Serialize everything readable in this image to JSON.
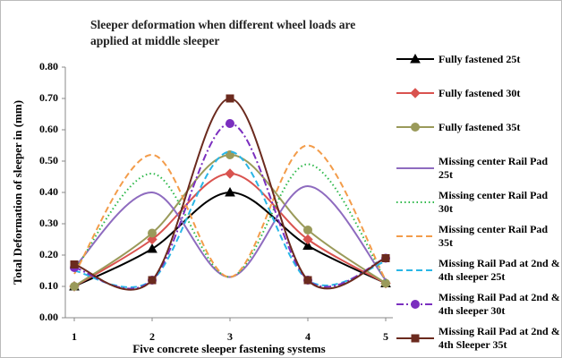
{
  "chart_data": {
    "type": "line",
    "title": "Sleeper deformation when different wheel loads are applied at middle sleeper",
    "x_label": "Five concrete sleeper fastening systems",
    "y_label": "Total Deformation of sleeper in (mm)",
    "x": [
      1,
      2,
      3,
      4,
      5
    ],
    "xlim": [
      1,
      5
    ],
    "xticks": [
      1,
      2,
      3,
      4,
      5
    ],
    "ylim": [
      0,
      0.8
    ],
    "yticks": [
      {
        "value": 0,
        "label": "0.00"
      },
      {
        "value": 0.1,
        "label": "0.10"
      },
      {
        "value": 0.2,
        "label": "0.20"
      },
      {
        "value": 0.3,
        "label": "0.30"
      },
      {
        "value": 0.4,
        "label": "0.40"
      },
      {
        "value": 0.5,
        "label": "0.50"
      },
      {
        "value": 0.6,
        "label": "0.60"
      },
      {
        "value": 0.7,
        "label": "0.70"
      },
      {
        "value": 0.8,
        "label": "0.80"
      }
    ],
    "smooth": true,
    "legend": "right",
    "series": [
      {
        "name": "Fully fastened 25t",
        "color": "#000000",
        "style": "solid",
        "marker": "triangle",
        "values": [
          0.1,
          0.22,
          0.4,
          0.23,
          0.11
        ]
      },
      {
        "name": "Fully fastened 30t",
        "color": "#d9534f",
        "style": "solid",
        "marker": "diamond",
        "values": [
          0.1,
          0.25,
          0.46,
          0.25,
          0.11
        ]
      },
      {
        "name": "Fully fastened 35t",
        "color": "#9a9a5a",
        "style": "solid",
        "marker": "circle",
        "values": [
          0.1,
          0.27,
          0.52,
          0.28,
          0.11
        ]
      },
      {
        "name": "Missing center Rail Pad 25t",
        "color": "#8e6bbf",
        "style": "solid",
        "marker": "none",
        "values": [
          0.16,
          0.4,
          0.13,
          0.42,
          0.12
        ]
      },
      {
        "name": "Missing center Rail Pad 30t",
        "color": "#2db84a",
        "style": "dotted",
        "marker": "none",
        "values": [
          0.15,
          0.46,
          0.13,
          0.49,
          0.12
        ]
      },
      {
        "name": "Missing center Rail Pad 35t",
        "color": "#f39c4a",
        "style": "dashed",
        "marker": "none",
        "values": [
          0.14,
          0.52,
          0.13,
          0.55,
          0.12
        ]
      },
      {
        "name": "Missing Rail Pad at 2nd & 4th sleeper 25t",
        "color": "#29b6e6",
        "style": "dashed",
        "marker": "none",
        "values": [
          0.15,
          0.12,
          0.53,
          0.12,
          0.18
        ]
      },
      {
        "name": "Missing Rail Pad at 2nd & 4th sleeper 30t",
        "color": "#7b2fbf",
        "style": "dashdot",
        "marker": "circle",
        "values": [
          0.16,
          0.12,
          0.62,
          0.12,
          0.19
        ]
      },
      {
        "name": "Missing Rail Pad at 2nd & 4th Sleeper 35t",
        "color": "#6b2a1e",
        "style": "solid",
        "marker": "square",
        "values": [
          0.17,
          0.12,
          0.7,
          0.12,
          0.19
        ]
      }
    ]
  }
}
